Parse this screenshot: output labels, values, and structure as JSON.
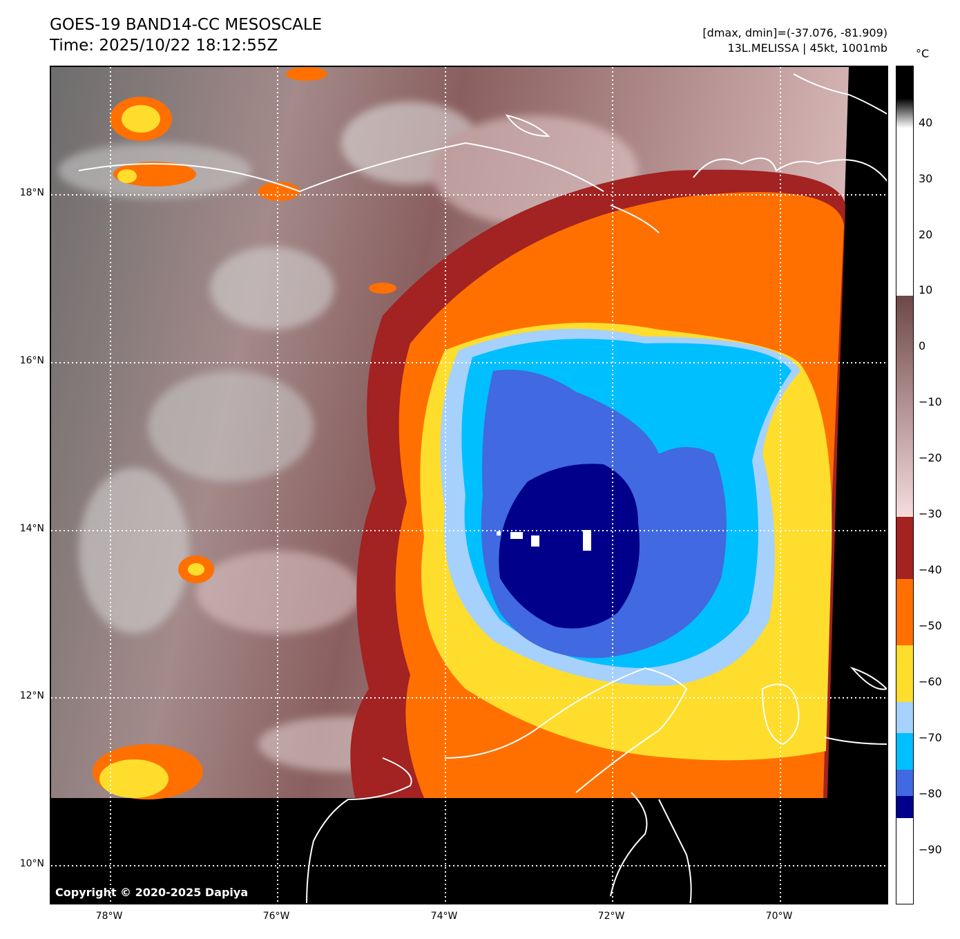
{
  "header": {
    "title": "GOES-19 BAND14-CC MESOSCALE",
    "time": "Time: 2025/10/22 18:12:55Z",
    "range": "[dmax, dmin]=(-37.076, -81.909)",
    "storm": "13L.MELISSA | 45kt, 1001mb"
  },
  "map": {
    "copyright": "Copyright © 2020-2025 Dapiya",
    "lat_labels": [
      "18°N",
      "16°N",
      "14°N",
      "12°N",
      "10°N"
    ],
    "lon_labels": [
      "78°W",
      "76°W",
      "74°W",
      "72°W",
      "70°W"
    ]
  },
  "colorbar": {
    "unit": "°C",
    "labels": [
      "40",
      "30",
      "20",
      "10",
      "0",
      "−10",
      "−20",
      "−30",
      "−40",
      "−50",
      "−60",
      "−70",
      "−80",
      "−90"
    ],
    "colors": {
      "dark_red": "#a32222",
      "orange": "#ff7000",
      "yellow": "#fedd2c",
      "light_blue": "#a6d1fd",
      "sky_blue": "#00bfff",
      "royal_blue": "#4169e1",
      "navy": "#00008b"
    }
  }
}
